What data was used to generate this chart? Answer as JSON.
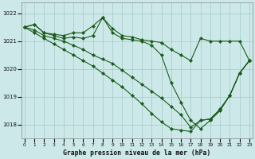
{
  "title": "Graphe pression niveau de la mer (hPa)",
  "bg_color": "#cde8e8",
  "grid_color": "#a8cece",
  "line_color": "#1a5c1a",
  "marker": "D",
  "markersize": 2.2,
  "linewidth": 0.8,
  "ylim": [
    1017.5,
    1022.4
  ],
  "yticks": [
    1018,
    1019,
    1020,
    1021,
    1022
  ],
  "xlim": [
    -0.3,
    23.3
  ],
  "xticks": [
    0,
    1,
    2,
    3,
    4,
    5,
    6,
    7,
    8,
    9,
    10,
    11,
    12,
    13,
    14,
    15,
    16,
    17,
    18,
    19,
    20,
    21,
    22,
    23
  ],
  "series": [
    {
      "x": [
        0,
        1,
        2,
        3,
        4,
        5,
        6,
        7,
        8,
        9,
        10,
        11,
        12,
        13,
        14,
        15,
        16,
        17,
        18,
        19,
        20,
        21,
        22,
        23
      ],
      "y": [
        1021.5,
        1021.6,
        1021.3,
        1021.25,
        1021.2,
        1021.3,
        1021.3,
        1021.55,
        1021.85,
        1021.45,
        1021.2,
        1021.15,
        1021.05,
        1021.0,
        1020.95,
        1020.7,
        1020.5,
        1020.3,
        1021.1,
        1021.0,
        1021.0,
        1021.0,
        1021.0,
        1020.3
      ]
    },
    {
      "x": [
        0,
        1,
        2,
        3,
        4,
        5,
        6,
        7,
        8,
        9,
        10,
        11,
        12,
        13,
        14,
        15,
        16,
        17,
        18,
        19,
        20,
        21,
        22,
        23
      ],
      "y": [
        1021.5,
        1021.6,
        1021.3,
        1021.2,
        1021.1,
        1021.15,
        1021.1,
        1021.2,
        1021.85,
        1021.3,
        1021.1,
        1021.05,
        1021.0,
        1020.85,
        1020.5,
        1019.5,
        1018.8,
        1018.15,
        1017.85,
        1018.15,
        1018.5,
        1019.05,
        1019.85,
        1020.3
      ]
    },
    {
      "x": [
        0,
        1,
        2,
        3,
        4,
        5,
        6,
        7,
        8,
        9,
        10,
        11,
        12,
        13,
        14,
        15,
        16,
        17,
        18,
        19,
        20,
        21,
        22,
        23
      ],
      "y": [
        1021.5,
        1021.4,
        1021.2,
        1021.1,
        1021.0,
        1020.85,
        1020.7,
        1020.5,
        1020.35,
        1020.2,
        1019.95,
        1019.7,
        1019.45,
        1019.2,
        1018.95,
        1018.65,
        1018.35,
        1017.9,
        1018.15,
        1018.2,
        1018.55,
        1019.05,
        1019.85,
        1020.3
      ]
    },
    {
      "x": [
        0,
        1,
        2,
        3,
        4,
        5,
        6,
        7,
        8,
        9,
        10,
        11,
        12,
        13,
        14,
        15,
        16,
        17,
        18,
        19,
        20,
        21,
        22,
        23
      ],
      "y": [
        1021.5,
        1021.3,
        1021.1,
        1020.9,
        1020.7,
        1020.5,
        1020.3,
        1020.1,
        1019.85,
        1019.6,
        1019.35,
        1019.05,
        1018.75,
        1018.4,
        1018.1,
        1017.85,
        1017.8,
        1017.75,
        1018.15,
        1018.2,
        1018.55,
        1019.05,
        1019.85,
        1020.3
      ]
    }
  ]
}
